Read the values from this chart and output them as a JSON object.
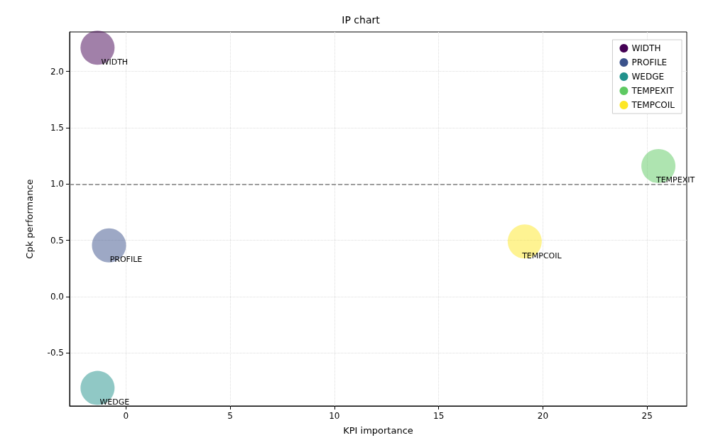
{
  "chart_data": {
    "type": "bubble",
    "title": "IP chart",
    "xlabel": "KPI importance",
    "ylabel": "Cpk performance",
    "series": [
      {
        "name": "WIDTH",
        "color": "#440154",
        "x": [
          -1.36
        ],
        "values": [
          2.21
        ],
        "sizes": [
          1
        ]
      },
      {
        "name": "PROFILE",
        "color": "#3b528b",
        "x": [
          -0.81
        ],
        "values": [
          0.455
        ],
        "sizes": [
          1
        ]
      },
      {
        "name": "WEDGE",
        "color": "#21918c",
        "x": [
          -1.36
        ],
        "values": [
          -0.81
        ],
        "sizes": [
          1
        ]
      },
      {
        "name": "TEMPEXIT",
        "color": "#5ec962",
        "x": [
          25.54
        ],
        "values": [
          1.16
        ],
        "sizes": [
          1
        ]
      },
      {
        "name": "TEMPCOIL",
        "color": "#fde725",
        "x": [
          19.13
        ],
        "values": [
          0.49
        ],
        "sizes": [
          1
        ]
      }
    ],
    "xlim": [
      -2.7,
      26.9
    ],
    "xticks": [
      0,
      5,
      10,
      15,
      20,
      25
    ],
    "ylim": [
      -0.97,
      2.35
    ],
    "yticks": [
      -0.5,
      {
        "value": 0,
        "label": "0.0"
      },
      0.5,
      {
        "value": 1,
        "label": "1.0"
      },
      1.5,
      {
        "value": 2,
        "label": "2.0"
      }
    ],
    "ref_lines": [
      {
        "axis": "y",
        "value": 1.0,
        "color": "#808080",
        "line_style": "dashed"
      }
    ],
    "grid": true,
    "legend": "top right",
    "marker": "circle"
  }
}
